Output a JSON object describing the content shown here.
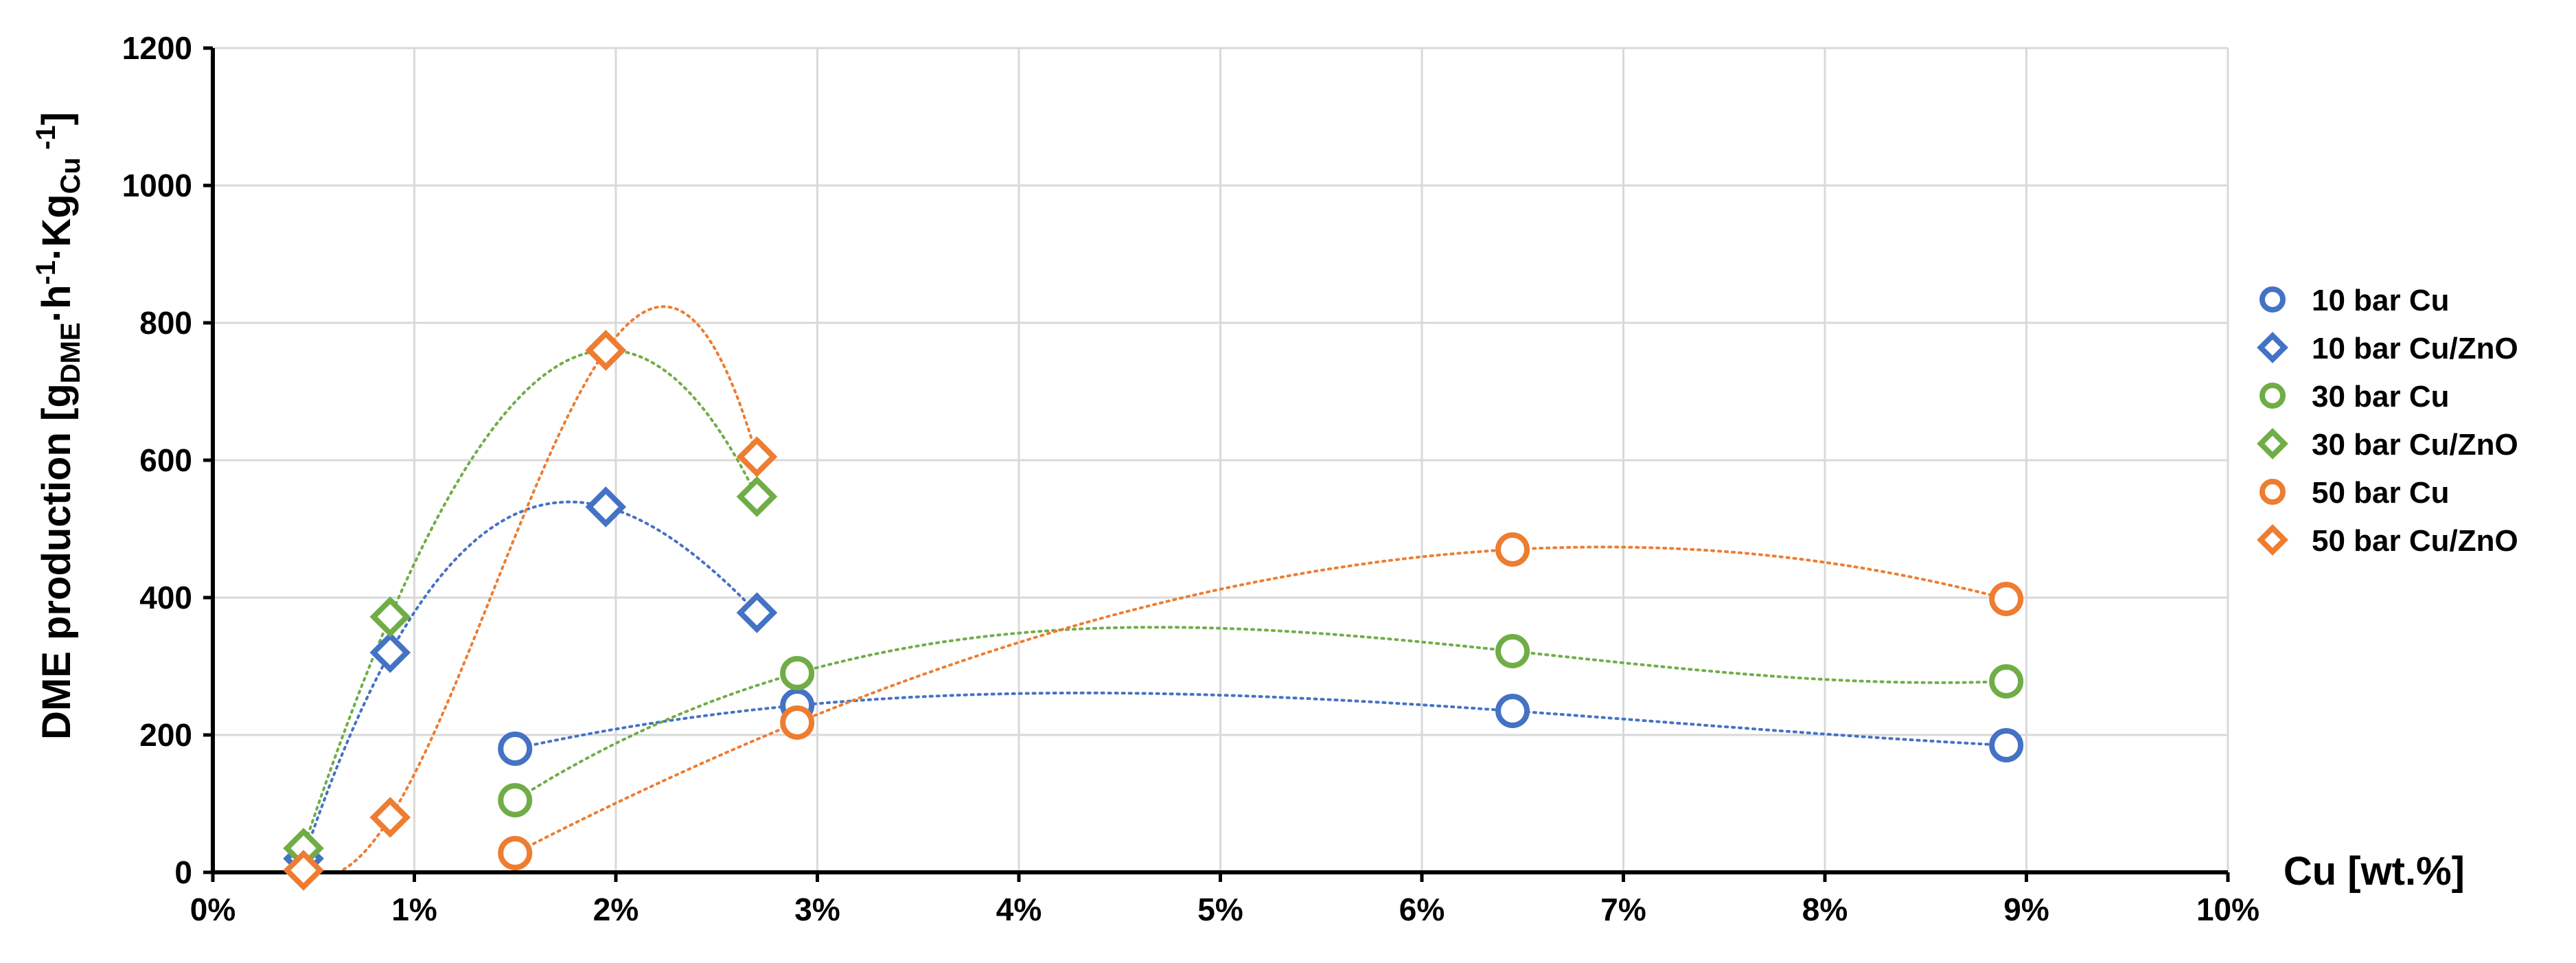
{
  "chart_data": {
    "type": "scatter",
    "title": "",
    "xlabel": "Cu [wt.%]",
    "ylabel": {
      "prefix": "DME production [g",
      "sub1": "DME",
      "mid1": "·h",
      "sup1": "-1",
      "mid2": "·Kg",
      "sub2": "Cu",
      "sup2": " -1",
      "suffix": "]"
    },
    "xlim": [
      0,
      10
    ],
    "ylim": [
      0,
      1200
    ],
    "x_ticks": [
      0,
      1,
      2,
      3,
      4,
      5,
      6,
      7,
      8,
      9,
      10
    ],
    "x_tick_labels": [
      "0%",
      "1%",
      "2%",
      "3%",
      "4%",
      "5%",
      "6%",
      "7%",
      "8%",
      "9%",
      "10%"
    ],
    "y_ticks": [
      0,
      200,
      400,
      600,
      800,
      1000,
      1200
    ],
    "y_tick_labels": [
      "0",
      "200",
      "400",
      "600",
      "800",
      "1000",
      "1200"
    ],
    "grid": true,
    "legend_position": "right",
    "trendlines": "dotted polynomial",
    "series": [
      {
        "name": "10 bar Cu",
        "marker": "circle",
        "color": "#4472C4",
        "x": [
          1.5,
          2.9,
          6.45,
          8.9
        ],
        "y": [
          180,
          243,
          235,
          185
        ]
      },
      {
        "name": "10 bar Cu/ZnO",
        "marker": "diamond",
        "color": "#4472C4",
        "x": [
          0.45,
          0.88,
          1.95,
          2.7
        ],
        "y": [
          20,
          320,
          532,
          378
        ]
      },
      {
        "name": "30 bar Cu",
        "marker": "circle",
        "color": "#70AD47",
        "x": [
          1.5,
          2.9,
          6.45,
          8.9
        ],
        "y": [
          105,
          290,
          322,
          278
        ]
      },
      {
        "name": "30 bar Cu/ZnO",
        "marker": "diamond",
        "color": "#70AD47",
        "x": [
          0.45,
          0.88,
          1.95,
          2.7
        ],
        "y": [
          35,
          372,
          760,
          547
        ]
      },
      {
        "name": "50 bar Cu",
        "marker": "circle",
        "color": "#ED7D31",
        "x": [
          1.5,
          2.9,
          6.45,
          8.9
        ],
        "y": [
          28,
          218,
          470,
          398
        ]
      },
      {
        "name": "50 bar Cu/ZnO",
        "marker": "diamond",
        "color": "#ED7D31",
        "x": [
          0.45,
          0.88,
          1.95,
          2.7
        ],
        "y": [
          3,
          80,
          760,
          605
        ]
      }
    ]
  }
}
